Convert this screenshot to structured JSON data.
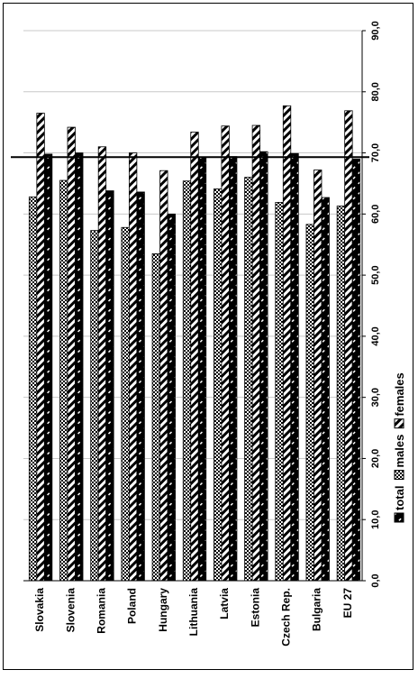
{
  "chart_data": {
    "type": "bar",
    "orientation": "vertical-rotated",
    "categories": [
      "Slovakia",
      "Slovenia",
      "Romania",
      "Poland",
      "Hungary",
      "Lithuania",
      "Latvia",
      "Estonia",
      "Czech Rep.",
      "Bulgaria",
      "EU 27"
    ],
    "series": [
      {
        "name": "total",
        "pattern": "solid-black-with-white-dashes",
        "values": [
          69.8,
          70.0,
          63.8,
          63.6,
          60.0,
          69.3,
          69.4,
          70.2,
          69.9,
          62.7,
          69.0
        ]
      },
      {
        "name": "males",
        "pattern": "checker",
        "values": [
          62.8,
          65.5,
          57.3,
          57.8,
          53.5,
          65.4,
          64.1,
          66.0,
          61.9,
          58.3,
          61.3
        ]
      },
      {
        "name": "females",
        "pattern": "diagonal-stripes",
        "values": [
          76.5,
          74.2,
          71.0,
          70.0,
          67.1,
          73.4,
          74.4,
          74.5,
          77.7,
          67.2,
          76.9
        ]
      }
    ],
    "series_draw_order": [
      "males",
      "females",
      "total"
    ],
    "reference_line": 69.3,
    "y_ticks": [
      "0,0",
      "10,0",
      "20,0",
      "30,0",
      "40,0",
      "50,0",
      "60,0",
      "70,0",
      "80,0",
      "90,0"
    ],
    "ylim": [
      0,
      90
    ],
    "grid": true,
    "legend": {
      "position": "right",
      "entries": [
        "total",
        "males",
        "females"
      ]
    },
    "title": "",
    "xlabel": "",
    "ylabel": ""
  }
}
